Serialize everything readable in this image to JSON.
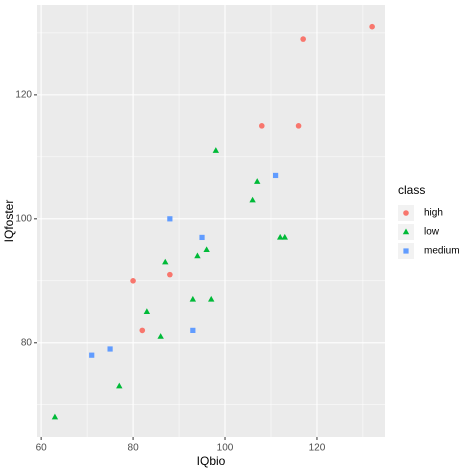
{
  "chart_data": {
    "type": "scatter",
    "x_label": "IQbio",
    "y_label": "IQfoster",
    "xlim": [
      59.1,
      134.8
    ],
    "ylim": [
      64.8,
      134.5
    ],
    "xticks": [
      60,
      80,
      100,
      120
    ],
    "yticks": [
      80,
      100,
      120
    ],
    "x_minor_grid": [
      70,
      90,
      110,
      130
    ],
    "y_minor_grid": [
      70,
      90,
      110,
      130
    ],
    "grid": true,
    "legend_title": "class",
    "legend_position": "right",
    "series": [
      {
        "name": "high",
        "color": "#F8766D",
        "marker": "circle",
        "x": [
          82,
          80,
          88,
          108,
          116,
          117,
          132
        ],
        "values": [
          82,
          90,
          91,
          115,
          115,
          129,
          131
        ]
      },
      {
        "name": "low",
        "color": "#00BA38",
        "marker": "triangle",
        "x": [
          63,
          77,
          86,
          83,
          93,
          97,
          87,
          94,
          96,
          112,
          113,
          106,
          107,
          98
        ],
        "values": [
          68,
          73,
          81,
          85,
          87,
          87,
          93,
          94,
          95,
          97,
          97,
          103,
          106,
          111
        ]
      },
      {
        "name": "medium",
        "color": "#619CFF",
        "marker": "square",
        "x": [
          71,
          75,
          93,
          95,
          88,
          111
        ],
        "values": [
          78,
          79,
          82,
          97,
          100,
          107
        ]
      }
    ]
  }
}
